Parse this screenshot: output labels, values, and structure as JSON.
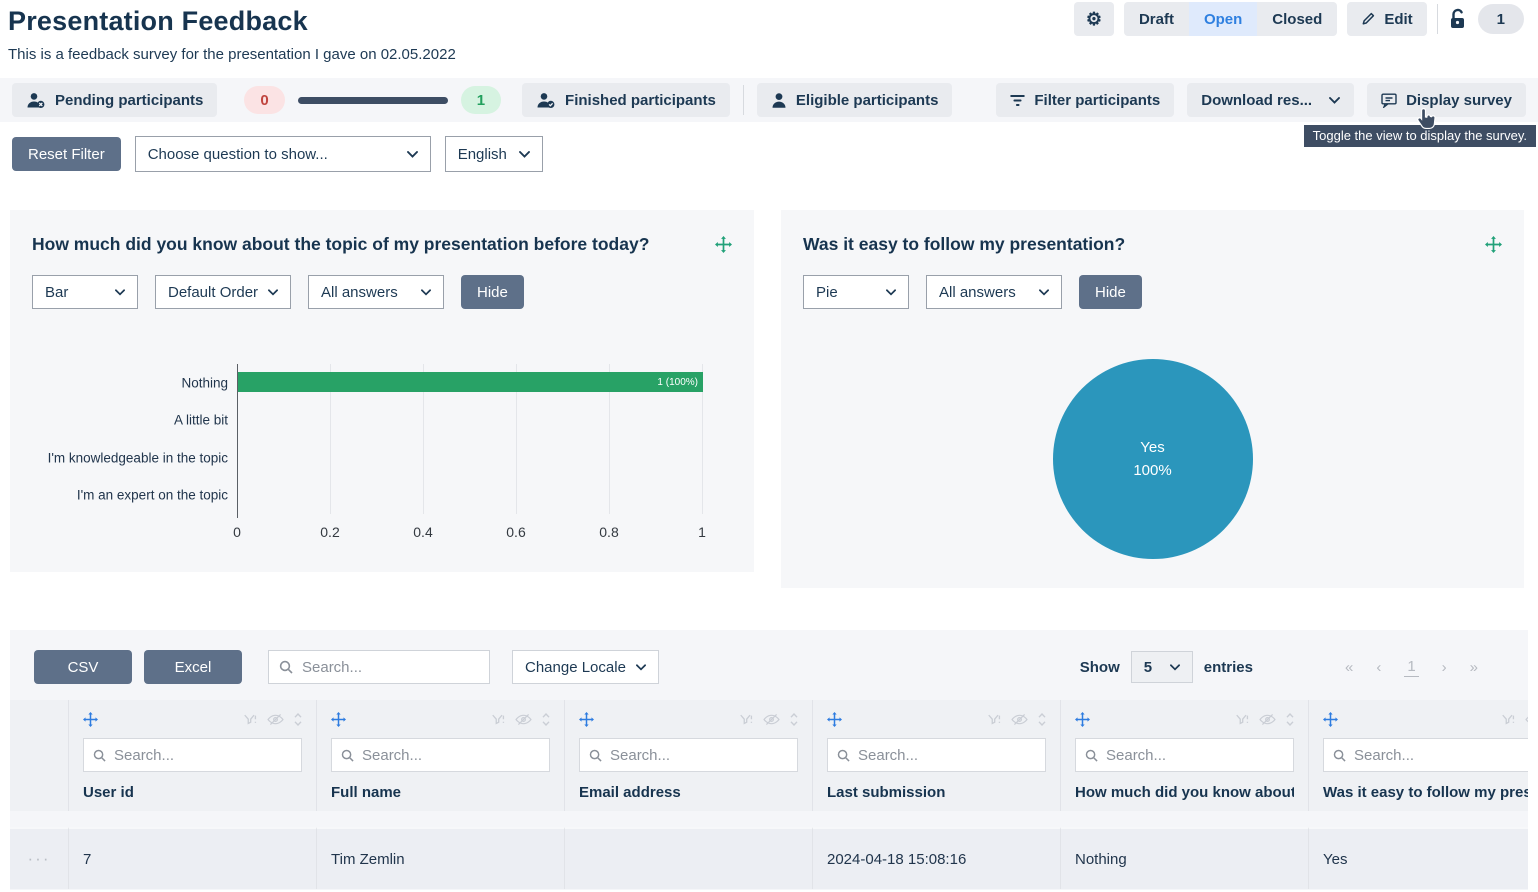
{
  "header": {
    "title": "Presentation Feedback",
    "subtitle": "This is a feedback survey for the presentation I gave on 02.05.2022",
    "status": {
      "draft": "Draft",
      "open": "Open",
      "closed": "Closed",
      "active": "Open"
    },
    "edit_label": "Edit",
    "count_badge": "1",
    "accent_blue": "#2f80e0"
  },
  "toolbar": {
    "pending_label": "Pending participants",
    "pending_count": "0",
    "progress_percent": 100,
    "finished_count": "1",
    "finished_label": "Finished participants",
    "eligible_label": "Eligible participants",
    "filter_label": "Filter participants",
    "download_label": "Download res...",
    "display_label": "Display survey",
    "display_tooltip": "Toggle the view to display the survey."
  },
  "filters": {
    "reset_label": "Reset Filter",
    "question_placeholder": "Choose question to show...",
    "language": "English"
  },
  "chart1": {
    "type": "bar",
    "title": "How much did you know about the topic of my presentation before today?",
    "chart_type": "Bar",
    "order": "Default Order",
    "answers": "All answers",
    "hide_label": "Hide",
    "categories": [
      "Nothing",
      "A little bit",
      "I'm knowledgeable in the topic",
      "I'm an expert on the topic"
    ],
    "values": [
      1,
      0,
      0,
      0
    ],
    "bar_label": "1 (100%)",
    "x_ticks": [
      "0",
      "0.2",
      "0.4",
      "0.6",
      "0.8",
      "1"
    ],
    "xlim": [
      0,
      1
    ],
    "bar_color": "#28a266"
  },
  "chart2": {
    "type": "pie",
    "title": "Was it easy to follow my presentation?",
    "chart_type": "Pie",
    "answers": "All answers",
    "hide_label": "Hide",
    "slices": [
      {
        "label": "Yes",
        "value": 1,
        "percent": 100
      }
    ],
    "center_label_line1": "Yes",
    "center_label_line2": "100%",
    "pie_color": "#2b96bc"
  },
  "table": {
    "csv_label": "CSV",
    "excel_label": "Excel",
    "search_placeholder": "Search...",
    "locale_label": "Change Locale",
    "show_label": "Show",
    "page_size": "5",
    "entries_label": "entries",
    "pagination": {
      "first": "«",
      "prev": "‹",
      "page": "1",
      "next": "›",
      "last": "»"
    },
    "actions_ellipsis": "···",
    "columns": [
      {
        "title": "User id"
      },
      {
        "title": "Full name"
      },
      {
        "title": "Email address"
      },
      {
        "title": "Last submission"
      },
      {
        "title": "How much did you know about the topic of my presentation before today?"
      },
      {
        "title": "Was it easy to follow my presentation?"
      }
    ],
    "rows": [
      {
        "user_id": "7",
        "full_name": "Tim Zemlin",
        "email": "",
        "last_submission": "2024-04-18 15:08:16",
        "q1": "Nothing",
        "q2": "Yes"
      }
    ]
  }
}
